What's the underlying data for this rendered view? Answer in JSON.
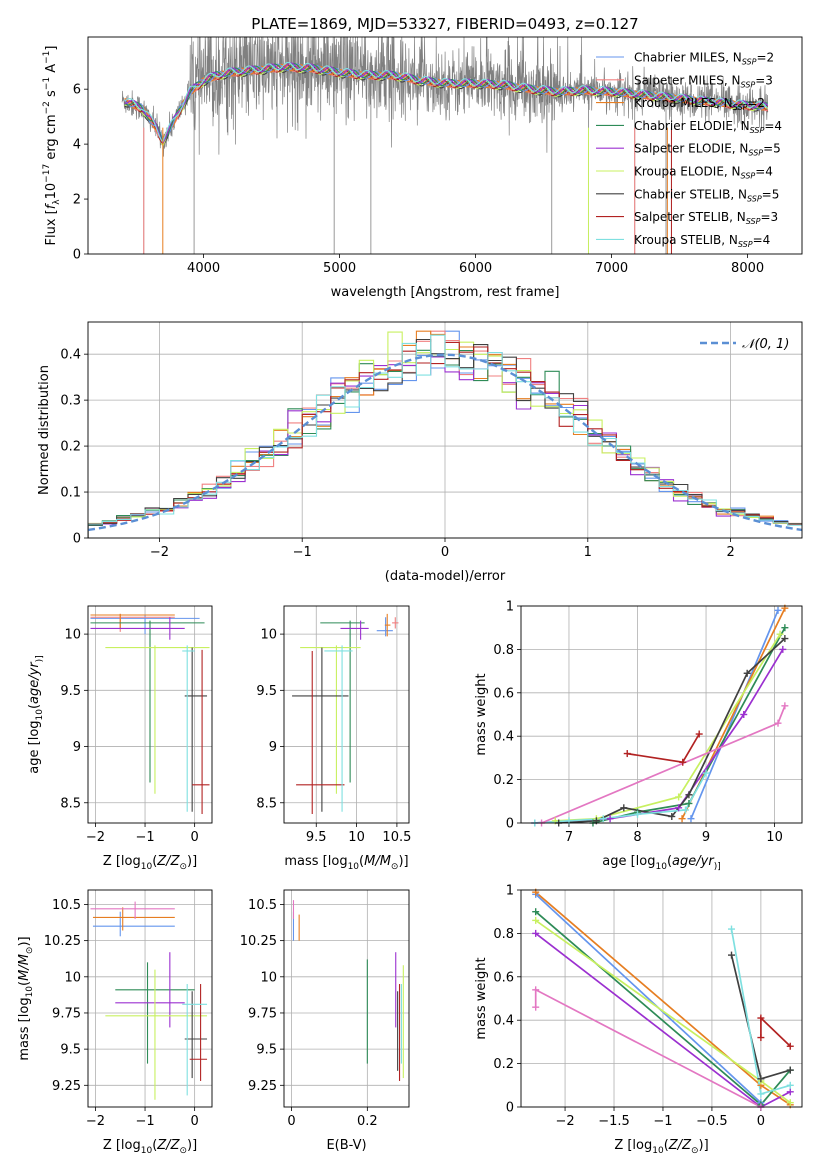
{
  "figure_title": "PLATE=1869, MJD=53327, FIBERID=0493, z=0.127",
  "colors": {
    "Chabrier MILES": "#6495ed",
    "Salpeter MILES": "#f08080",
    "Kroupa MILES": "#e67e22",
    "Chabrier ELODIE": "#2e8b57",
    "Salpeter ELODIE": "#9b30d0",
    "Kroupa ELODIE": "#c8f060",
    "Chabrier STELIB": "#404040",
    "Salpeter STELIB": "#b22222",
    "Kroupa STELIB": "#7fe0e0",
    "data": "#808080",
    "pink": "#e377c2"
  },
  "chart_data": [
    {
      "id": "spectrum",
      "type": "line",
      "title": "",
      "xlabel": "wavelength [Angstrom, rest frame]",
      "ylabel_parts": [
        "Flux [",
        "f",
        "λ",
        "10",
        "−17",
        " erg cm",
        "−2",
        " s",
        "−1",
        " A",
        "−1",
        "]"
      ],
      "xlim": [
        3150,
        8400
      ],
      "ylim": [
        0,
        7.9
      ],
      "xticks": [
        4000,
        5000,
        6000,
        7000,
        8000
      ],
      "yticks": [
        0,
        2,
        4,
        6
      ],
      "grid": false,
      "legend_position": "top-right",
      "legend": [
        {
          "name": "Chabrier MILES",
          "nssp": "2",
          "color_key": "Chabrier MILES"
        },
        {
          "name": "Salpeter MILES",
          "nssp": "3",
          "color_key": "Salpeter MILES"
        },
        {
          "name": "Kroupa MILES",
          "nssp": "2",
          "color_key": "Kroupa MILES"
        },
        {
          "name": "Chabrier ELODIE",
          "nssp": "4",
          "color_key": "Chabrier ELODIE"
        },
        {
          "name": "Salpeter ELODIE",
          "nssp": "5",
          "color_key": "Salpeter ELODIE"
        },
        {
          "name": "Kroupa ELODIE",
          "nssp": "4",
          "color_key": "Kroupa ELODIE"
        },
        {
          "name": "Chabrier STELIB",
          "nssp": "5",
          "color_key": "Chabrier STELIB"
        },
        {
          "name": "Salpeter STELIB",
          "nssp": "3",
          "color_key": "Salpeter STELIB"
        },
        {
          "name": "Kroupa STELIB",
          "nssp": "4",
          "color_key": "Kroupa STELIB"
        }
      ],
      "continuum": [
        [
          3400,
          5.6
        ],
        [
          3550,
          5.3
        ],
        [
          3650,
          4.6
        ],
        [
          3700,
          4.1
        ],
        [
          3800,
          5.0
        ],
        [
          3900,
          5.9
        ],
        [
          4000,
          6.3
        ],
        [
          4100,
          6.5
        ],
        [
          4200,
          6.6
        ],
        [
          4400,
          6.7
        ],
        [
          4600,
          6.8
        ],
        [
          4800,
          6.75
        ],
        [
          5000,
          6.6
        ],
        [
          5200,
          6.5
        ],
        [
          5400,
          6.5
        ],
        [
          5600,
          6.3
        ],
        [
          5800,
          6.2
        ],
        [
          6000,
          6.2
        ],
        [
          6200,
          6.15
        ],
        [
          6400,
          6.0
        ],
        [
          6600,
          5.9
        ],
        [
          6800,
          5.95
        ],
        [
          7000,
          5.9
        ],
        [
          7200,
          5.8
        ],
        [
          7400,
          5.7
        ],
        [
          7600,
          5.6
        ],
        [
          7800,
          5.5
        ],
        [
          8000,
          5.4
        ],
        [
          8150,
          5.35
        ]
      ],
      "dropouts": [
        3560,
        3930,
        4960,
        5230,
        6560,
        6830,
        7170,
        7400,
        7440
      ]
    },
    {
      "id": "residuals",
      "type": "histogram",
      "xlabel": "(data-model)/error",
      "ylabel": "Normed distribution",
      "xlim": [
        -2.5,
        2.5
      ],
      "ylim": [
        0,
        0.47
      ],
      "xticks": [
        -2,
        -1,
        0,
        1,
        2
      ],
      "yticks": [
        0.0,
        0.1,
        0.2,
        0.3,
        0.4
      ],
      "grid": true,
      "legend_position": "top-right",
      "legend_label": "𝒩(0, 1)",
      "bin_width": 0.1,
      "gaussian_sigma": 1.0
    },
    {
      "id": "age-vs-Z",
      "type": "errorbar",
      "xlabel_parts": [
        "Z [log",
        "10",
        "(",
        "Z/Z",
        "⊙",
        ")]"
      ],
      "ylabel_parts": [
        "age  [log",
        "10",
        "(",
        "age/yr",
        ")]"
      ],
      "xlim": [
        -2.15,
        0.35
      ],
      "ylim": [
        8.32,
        10.25
      ],
      "xticks": [
        -2,
        -1,
        0
      ],
      "yticks": [
        8.5,
        9.0,
        9.5,
        10.0
      ],
      "grid": true,
      "points": [
        {
          "c": "Chabrier MILES",
          "x": -1.0,
          "xl": -2.1,
          "xh": 0.1,
          "y": 10.14,
          "yl": 10.0,
          "yh": 10.17
        },
        {
          "c": "Salpeter MILES",
          "x": -1.5,
          "xl": -2.1,
          "xh": -0.4,
          "y": 10.15,
          "yl": 10.02,
          "yh": 10.18
        },
        {
          "c": "Kroupa MILES",
          "x": -1.5,
          "xl": -2.1,
          "xh": -0.4,
          "y": 10.17,
          "yl": 10.05,
          "yh": 10.18
        },
        {
          "c": "Chabrier ELODIE",
          "x": -0.9,
          "xl": -2.1,
          "xh": 0.2,
          "y": 10.1,
          "yl": 8.68,
          "yh": 10.12
        },
        {
          "c": "Salpeter ELODIE",
          "x": -0.5,
          "xl": -2.1,
          "xh": -0.2,
          "y": 10.05,
          "yl": 9.95,
          "yh": 10.15
        },
        {
          "c": "Kroupa ELODIE",
          "x": -0.8,
          "xl": -1.8,
          "xh": 0.3,
          "y": 9.88,
          "yl": 8.58,
          "yh": 9.9
        },
        {
          "c": "Chabrier STELIB",
          "x": -0.05,
          "xl": -0.2,
          "xh": 0.25,
          "y": 9.45,
          "yl": 8.42,
          "yh": 9.88
        },
        {
          "c": "Salpeter STELIB",
          "x": 0.15,
          "xl": -0.05,
          "xh": 0.3,
          "y": 8.66,
          "yl": 8.4,
          "yh": 9.86
        },
        {
          "c": "Kroupa STELIB",
          "x": -0.15,
          "xl": -0.25,
          "xh": 0.0,
          "y": 9.85,
          "yl": 8.42,
          "yh": 9.9
        }
      ]
    },
    {
      "id": "age-vs-mass",
      "type": "errorbar",
      "xlabel_parts": [
        "mass [log",
        "10",
        "(",
        "M/M",
        "⊙",
        ")]"
      ],
      "xlim": [
        9.1,
        10.65
      ],
      "ylim": [
        8.32,
        10.25
      ],
      "xticks": [
        9.5,
        10.0,
        10.5
      ],
      "yticks": [
        8.5,
        9.0,
        9.5,
        10.0
      ],
      "grid": true,
      "points": [
        {
          "c": "Chabrier MILES",
          "x": 10.36,
          "xl": 10.25,
          "xh": 10.45,
          "y": 10.03,
          "yl": 9.98,
          "yh": 10.15
        },
        {
          "c": "Salpeter MILES",
          "x": 10.48,
          "xl": 10.44,
          "xh": 10.52,
          "y": 10.1,
          "yl": 10.05,
          "yh": 10.15
        },
        {
          "c": "Kroupa MILES",
          "x": 10.38,
          "xl": 10.35,
          "xh": 10.42,
          "y": 10.08,
          "yl": 9.98,
          "yh": 10.18
        },
        {
          "c": "Chabrier ELODIE",
          "x": 9.92,
          "xl": 9.55,
          "xh": 10.1,
          "y": 10.1,
          "yl": 8.68,
          "yh": 10.12
        },
        {
          "c": "Salpeter ELODIE",
          "x": 10.05,
          "xl": 9.8,
          "xh": 10.15,
          "y": 10.05,
          "yl": 9.95,
          "yh": 10.12
        },
        {
          "c": "Kroupa ELODIE",
          "x": 9.75,
          "xl": 9.3,
          "xh": 10.05,
          "y": 9.88,
          "yl": 8.58,
          "yh": 9.9
        },
        {
          "c": "Chabrier STELIB",
          "x": 9.57,
          "xl": 9.2,
          "xh": 9.9,
          "y": 9.45,
          "yl": 8.42,
          "yh": 9.88
        },
        {
          "c": "Salpeter STELIB",
          "x": 9.45,
          "xl": 9.25,
          "xh": 9.85,
          "y": 8.66,
          "yl": 8.4,
          "yh": 9.85
        },
        {
          "c": "Kroupa STELIB",
          "x": 9.82,
          "xl": 9.6,
          "xh": 9.95,
          "y": 9.85,
          "yl": 8.42,
          "yh": 9.9
        }
      ]
    },
    {
      "id": "weight-vs-age",
      "type": "line",
      "xlabel_parts": [
        "age  [log",
        "10",
        "(",
        "age/yr",
        ")]"
      ],
      "ylabel": "mass weight",
      "xlim": [
        6.3,
        10.4
      ],
      "ylim": [
        0,
        1.0
      ],
      "xticks": [
        7,
        8,
        9,
        10
      ],
      "yticks": [
        0.0,
        0.2,
        0.4,
        0.6,
        0.8,
        1.0
      ],
      "grid": true,
      "series": [
        {
          "c": "Chabrier MILES",
          "x": [
            8.78,
            10.05
          ],
          "y": [
            0.02,
            0.98
          ]
        },
        {
          "c": "Kroupa MILES",
          "x": [
            8.65,
            10.15
          ],
          "y": [
            0.02,
            0.99
          ]
        },
        {
          "c": "Chabrier ELODIE",
          "x": [
            7.35,
            8.0,
            8.75,
            10.15
          ],
          "y": [
            0.0,
            0.05,
            0.09,
            0.9
          ]
        },
        {
          "c": "Salpeter ELODIE",
          "x": [
            6.5,
            7.6,
            8.6,
            9.55,
            10.12
          ],
          "y": [
            0.0,
            0.02,
            0.07,
            0.5,
            0.8
          ]
        },
        {
          "c": "Kroupa ELODIE",
          "x": [
            6.8,
            7.4,
            8.6,
            10.08
          ],
          "y": [
            0.01,
            0.02,
            0.12,
            0.87
          ]
        },
        {
          "c": "Chabrier STELIB",
          "x": [
            6.85,
            7.4,
            7.8,
            8.5,
            8.75,
            9.6,
            10.15
          ],
          "y": [
            0.0,
            0.01,
            0.07,
            0.03,
            0.13,
            0.69,
            0.85
          ]
        },
        {
          "c": "Salpeter STELIB",
          "x": [
            7.85,
            8.66,
            8.9
          ],
          "y": [
            0.32,
            0.28,
            0.41
          ]
        },
        {
          "c": "Kroupa STELIB",
          "x": [
            6.5,
            7.0,
            7.5,
            8.0,
            8.7,
            9.0
          ],
          "y": [
            0.0,
            0.01,
            0.02,
            0.04,
            0.06,
            0.23
          ]
        },
        {
          "c": "pink",
          "x": [
            6.6,
            10.05,
            10.15
          ],
          "y": [
            0.0,
            0.46,
            0.54
          ]
        }
      ]
    },
    {
      "id": "mass-vs-Z",
      "type": "errorbar",
      "xlabel_parts": [
        "Z [log",
        "10",
        "(",
        "Z/Z",
        "⊙",
        ")]"
      ],
      "ylabel_parts": [
        "mass [log",
        "10",
        "(",
        "M/M",
        "⊙",
        ")]"
      ],
      "xlim": [
        -2.15,
        0.35
      ],
      "ylim": [
        9.1,
        10.6
      ],
      "xticks": [
        -2,
        -1,
        0
      ],
      "yticks": [
        9.25,
        9.5,
        9.75,
        10.0,
        10.25,
        10.5
      ],
      "grid": true,
      "points": [
        {
          "c": "Chabrier MILES",
          "x": -1.5,
          "xl": -2.05,
          "xh": -0.4,
          "y": 10.35,
          "yl": 10.28,
          "yh": 10.45
        },
        {
          "c": "Kroupa MILES",
          "x": -1.45,
          "xl": -2.05,
          "xh": -0.4,
          "y": 10.41,
          "yl": 10.32,
          "yh": 10.48
        },
        {
          "c": "pink",
          "x": -1.2,
          "xl": -2.1,
          "xh": -0.4,
          "y": 10.47,
          "yl": 10.4,
          "yh": 10.52
        },
        {
          "c": "Chabrier ELODIE",
          "x": -0.95,
          "xl": -1.6,
          "xh": 0.0,
          "y": 9.91,
          "yl": 9.4,
          "yh": 10.1
        },
        {
          "c": "Salpeter ELODIE",
          "x": -0.5,
          "xl": -1.6,
          "xh": -0.2,
          "y": 9.82,
          "yl": 9.65,
          "yh": 10.17
        },
        {
          "c": "Kroupa ELODIE",
          "x": -0.8,
          "xl": -1.8,
          "xh": 0.25,
          "y": 9.73,
          "yl": 9.15,
          "yh": 10.05
        },
        {
          "c": "Chabrier STELIB",
          "x": -0.05,
          "xl": -0.2,
          "xh": 0.25,
          "y": 9.57,
          "yl": 9.3,
          "yh": 9.9
        },
        {
          "c": "Salpeter STELIB",
          "x": 0.12,
          "xl": -0.1,
          "xh": 0.25,
          "y": 9.43,
          "yl": 9.28,
          "yh": 9.95
        },
        {
          "c": "Kroupa STELIB",
          "x": -0.15,
          "xl": -0.25,
          "xh": 0.25,
          "y": 9.81,
          "yl": 9.18,
          "yh": 9.95
        }
      ]
    },
    {
      "id": "mass-vs-EBV",
      "type": "errorbar",
      "xlabel": "E(B-V)",
      "xlim": [
        -0.02,
        0.31
      ],
      "ylim": [
        9.1,
        10.6
      ],
      "xticks": [
        0.0,
        0.2
      ],
      "yticks": [
        9.25,
        9.5,
        9.75,
        10.0,
        10.25,
        10.5
      ],
      "grid": true,
      "points": [
        {
          "c": "Chabrier MILES",
          "x": 0.005,
          "xl": 0.005,
          "xh": 0.005,
          "y": 10.35,
          "yl": 10.25,
          "yh": 10.45
        },
        {
          "c": "pink",
          "x": 0.005,
          "xl": 0.005,
          "xh": 0.005,
          "y": 10.47,
          "yl": 10.4,
          "yh": 10.53
        },
        {
          "c": "Kroupa MILES",
          "x": 0.02,
          "xl": 0.02,
          "xh": 0.02,
          "y": 10.35,
          "yl": 10.25,
          "yh": 10.43
        },
        {
          "c": "Chabrier ELODIE",
          "x": 0.2,
          "xl": 0.2,
          "xh": 0.2,
          "y": 9.9,
          "yl": 9.4,
          "yh": 10.12
        },
        {
          "c": "Salpeter ELODIE",
          "x": 0.275,
          "xl": 0.275,
          "xh": 0.275,
          "y": 9.82,
          "yl": 9.65,
          "yh": 10.17
        },
        {
          "c": "Kroupa ELODIE",
          "x": 0.295,
          "xl": 0.295,
          "xh": 0.295,
          "y": 9.73,
          "yl": 9.3,
          "yh": 10.08
        },
        {
          "c": "Chabrier STELIB",
          "x": 0.28,
          "xl": 0.28,
          "xh": 0.28,
          "y": 9.6,
          "yl": 9.35,
          "yh": 9.9
        },
        {
          "c": "Salpeter STELIB",
          "x": 0.285,
          "xl": 0.285,
          "xh": 0.285,
          "y": 9.45,
          "yl": 9.28,
          "yh": 9.95
        },
        {
          "c": "Kroupa STELIB",
          "x": 0.29,
          "xl": 0.29,
          "xh": 0.29,
          "y": 9.78,
          "yl": 9.4,
          "yh": 9.95
        }
      ]
    },
    {
      "id": "weight-vs-Z",
      "type": "line",
      "xlabel_parts": [
        "Z [log",
        "10",
        "(",
        "Z/Z",
        "⊙",
        ")]"
      ],
      "ylabel": "mass weight",
      "xlim": [
        -2.45,
        0.42
      ],
      "ylim": [
        0,
        1.0
      ],
      "xticks": [
        -2.0,
        -1.5,
        -1.0,
        -0.5,
        0.0
      ],
      "yticks": [
        0.0,
        0.2,
        0.4,
        0.6,
        0.8,
        1.0
      ],
      "grid": true,
      "series": [
        {
          "c": "Chabrier MILES",
          "x": [
            -2.3,
            0.0
          ],
          "y": [
            0.98,
            0.02
          ]
        },
        {
          "c": "Kroupa MILES",
          "x": [
            -2.3,
            0.0,
            0.3
          ],
          "y": [
            0.99,
            0.1,
            0.01
          ]
        },
        {
          "c": "Chabrier ELODIE",
          "x": [
            -2.3,
            0.0,
            0.3
          ],
          "y": [
            0.9,
            0.01,
            0.17
          ]
        },
        {
          "c": "Salpeter ELODIE",
          "x": [
            -2.3,
            0.0,
            0.3
          ],
          "y": [
            0.8,
            0.0,
            0.07
          ]
        },
        {
          "c": "Kroupa ELODIE",
          "x": [
            -2.3,
            0.0,
            0.3
          ],
          "y": [
            0.86,
            0.12,
            0.02
          ]
        },
        {
          "c": "Chabrier STELIB",
          "x": [
            -0.3,
            0.0,
            0.3
          ],
          "y": [
            0.7,
            0.13,
            0.17
          ]
        },
        {
          "c": "Salpeter STELIB",
          "x": [
            0.0,
            0.0,
            0.3
          ],
          "y": [
            0.32,
            0.41,
            0.28
          ]
        },
        {
          "c": "Kroupa STELIB",
          "x": [
            -0.3,
            0.0,
            0.3
          ],
          "y": [
            0.82,
            0.06,
            0.1
          ]
        },
        {
          "c": "pink",
          "x": [
            -2.3,
            -2.3,
            0.0
          ],
          "y": [
            0.46,
            0.54,
            0.0
          ]
        }
      ]
    }
  ]
}
